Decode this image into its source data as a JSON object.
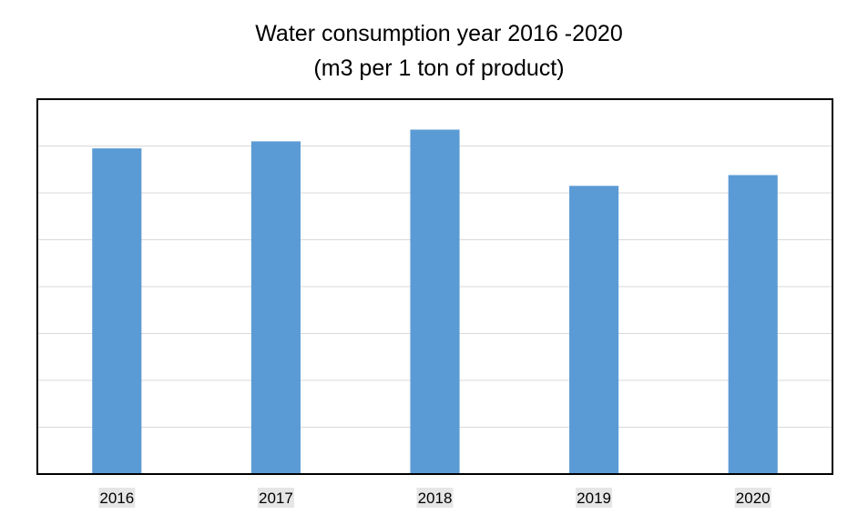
{
  "chart_data": {
    "type": "bar",
    "title": "Water consumption year 2016 -2020",
    "subtitle": "(m3 per 1 ton of product)",
    "categories": [
      "2016",
      "2017",
      "2018",
      "2019",
      "2020"
    ],
    "values": [
      6.95,
      7.1,
      7.35,
      6.15,
      6.38
    ],
    "ylim": [
      0,
      8
    ],
    "y_grid_step": 1,
    "grid": true,
    "y_tick_labels_shown": false,
    "xlabel": "",
    "ylabel": "",
    "legend": "none",
    "colors": {
      "bar": "#5B9BD5",
      "grid": "#D9D9D9",
      "frame": "#000000",
      "tick_label_bg": "#E7E6E6"
    }
  }
}
